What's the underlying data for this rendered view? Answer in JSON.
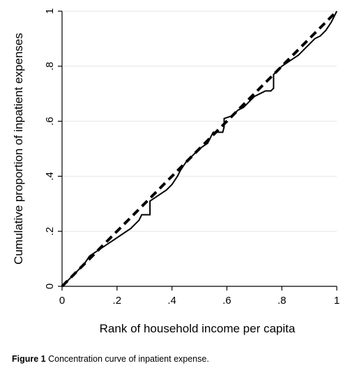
{
  "caption": {
    "label": "Figure 1",
    "text": "Concentration curve of inpatient expense."
  },
  "chart_data": {
    "type": "line",
    "title": "",
    "xlabel": "Rank of household income per capita",
    "ylabel": "Cumulative proportion of inpatient expenses",
    "xlim": [
      0,
      1
    ],
    "ylim": [
      0,
      1
    ],
    "x_ticks": [
      {
        "value": 0,
        "label": "0"
      },
      {
        "value": 0.2,
        "label": ".2"
      },
      {
        "value": 0.4,
        "label": ".4"
      },
      {
        "value": 0.6,
        "label": ".6"
      },
      {
        "value": 0.8,
        "label": ".8"
      },
      {
        "value": 1,
        "label": "1"
      }
    ],
    "y_ticks": [
      {
        "value": 0,
        "label": "0"
      },
      {
        "value": 0.2,
        "label": ".2"
      },
      {
        "value": 0.4,
        "label": ".4"
      },
      {
        "value": 0.6,
        "label": ".6"
      },
      {
        "value": 0.8,
        "label": ".8"
      },
      {
        "value": 1,
        "label": "1"
      }
    ],
    "grid": true,
    "legend": "none",
    "series": [
      {
        "style": "solid",
        "color": "#000000",
        "x": [
          0,
          0.02,
          0.05,
          0.08,
          0.1,
          0.13,
          0.16,
          0.19,
          0.22,
          0.25,
          0.28,
          0.29,
          0.31,
          0.32,
          0.32,
          0.35,
          0.38,
          0.4,
          0.42,
          0.43,
          0.45,
          0.47,
          0.5,
          0.53,
          0.55,
          0.56,
          0.57,
          0.58,
          0.585,
          0.59,
          0.59,
          0.62,
          0.64,
          0.66,
          0.68,
          0.7,
          0.72,
          0.74,
          0.76,
          0.77,
          0.77,
          0.8,
          0.83,
          0.86,
          0.88,
          0.9,
          0.92,
          0.94,
          0.96,
          0.98,
          0.99,
          1
        ],
        "y": [
          0,
          0.02,
          0.05,
          0.08,
          0.11,
          0.13,
          0.15,
          0.17,
          0.19,
          0.21,
          0.24,
          0.26,
          0.26,
          0.26,
          0.31,
          0.33,
          0.35,
          0.37,
          0.4,
          0.42,
          0.45,
          0.47,
          0.5,
          0.52,
          0.56,
          0.56,
          0.56,
          0.56,
          0.56,
          0.58,
          0.61,
          0.62,
          0.64,
          0.65,
          0.67,
          0.69,
          0.7,
          0.71,
          0.71,
          0.72,
          0.77,
          0.8,
          0.82,
          0.84,
          0.86,
          0.88,
          0.9,
          0.91,
          0.93,
          0.96,
          0.98,
          1
        ]
      },
      {
        "style": "dashed",
        "color": "#000000",
        "x": [
          0,
          1
        ],
        "y": [
          0,
          1
        ]
      }
    ]
  }
}
